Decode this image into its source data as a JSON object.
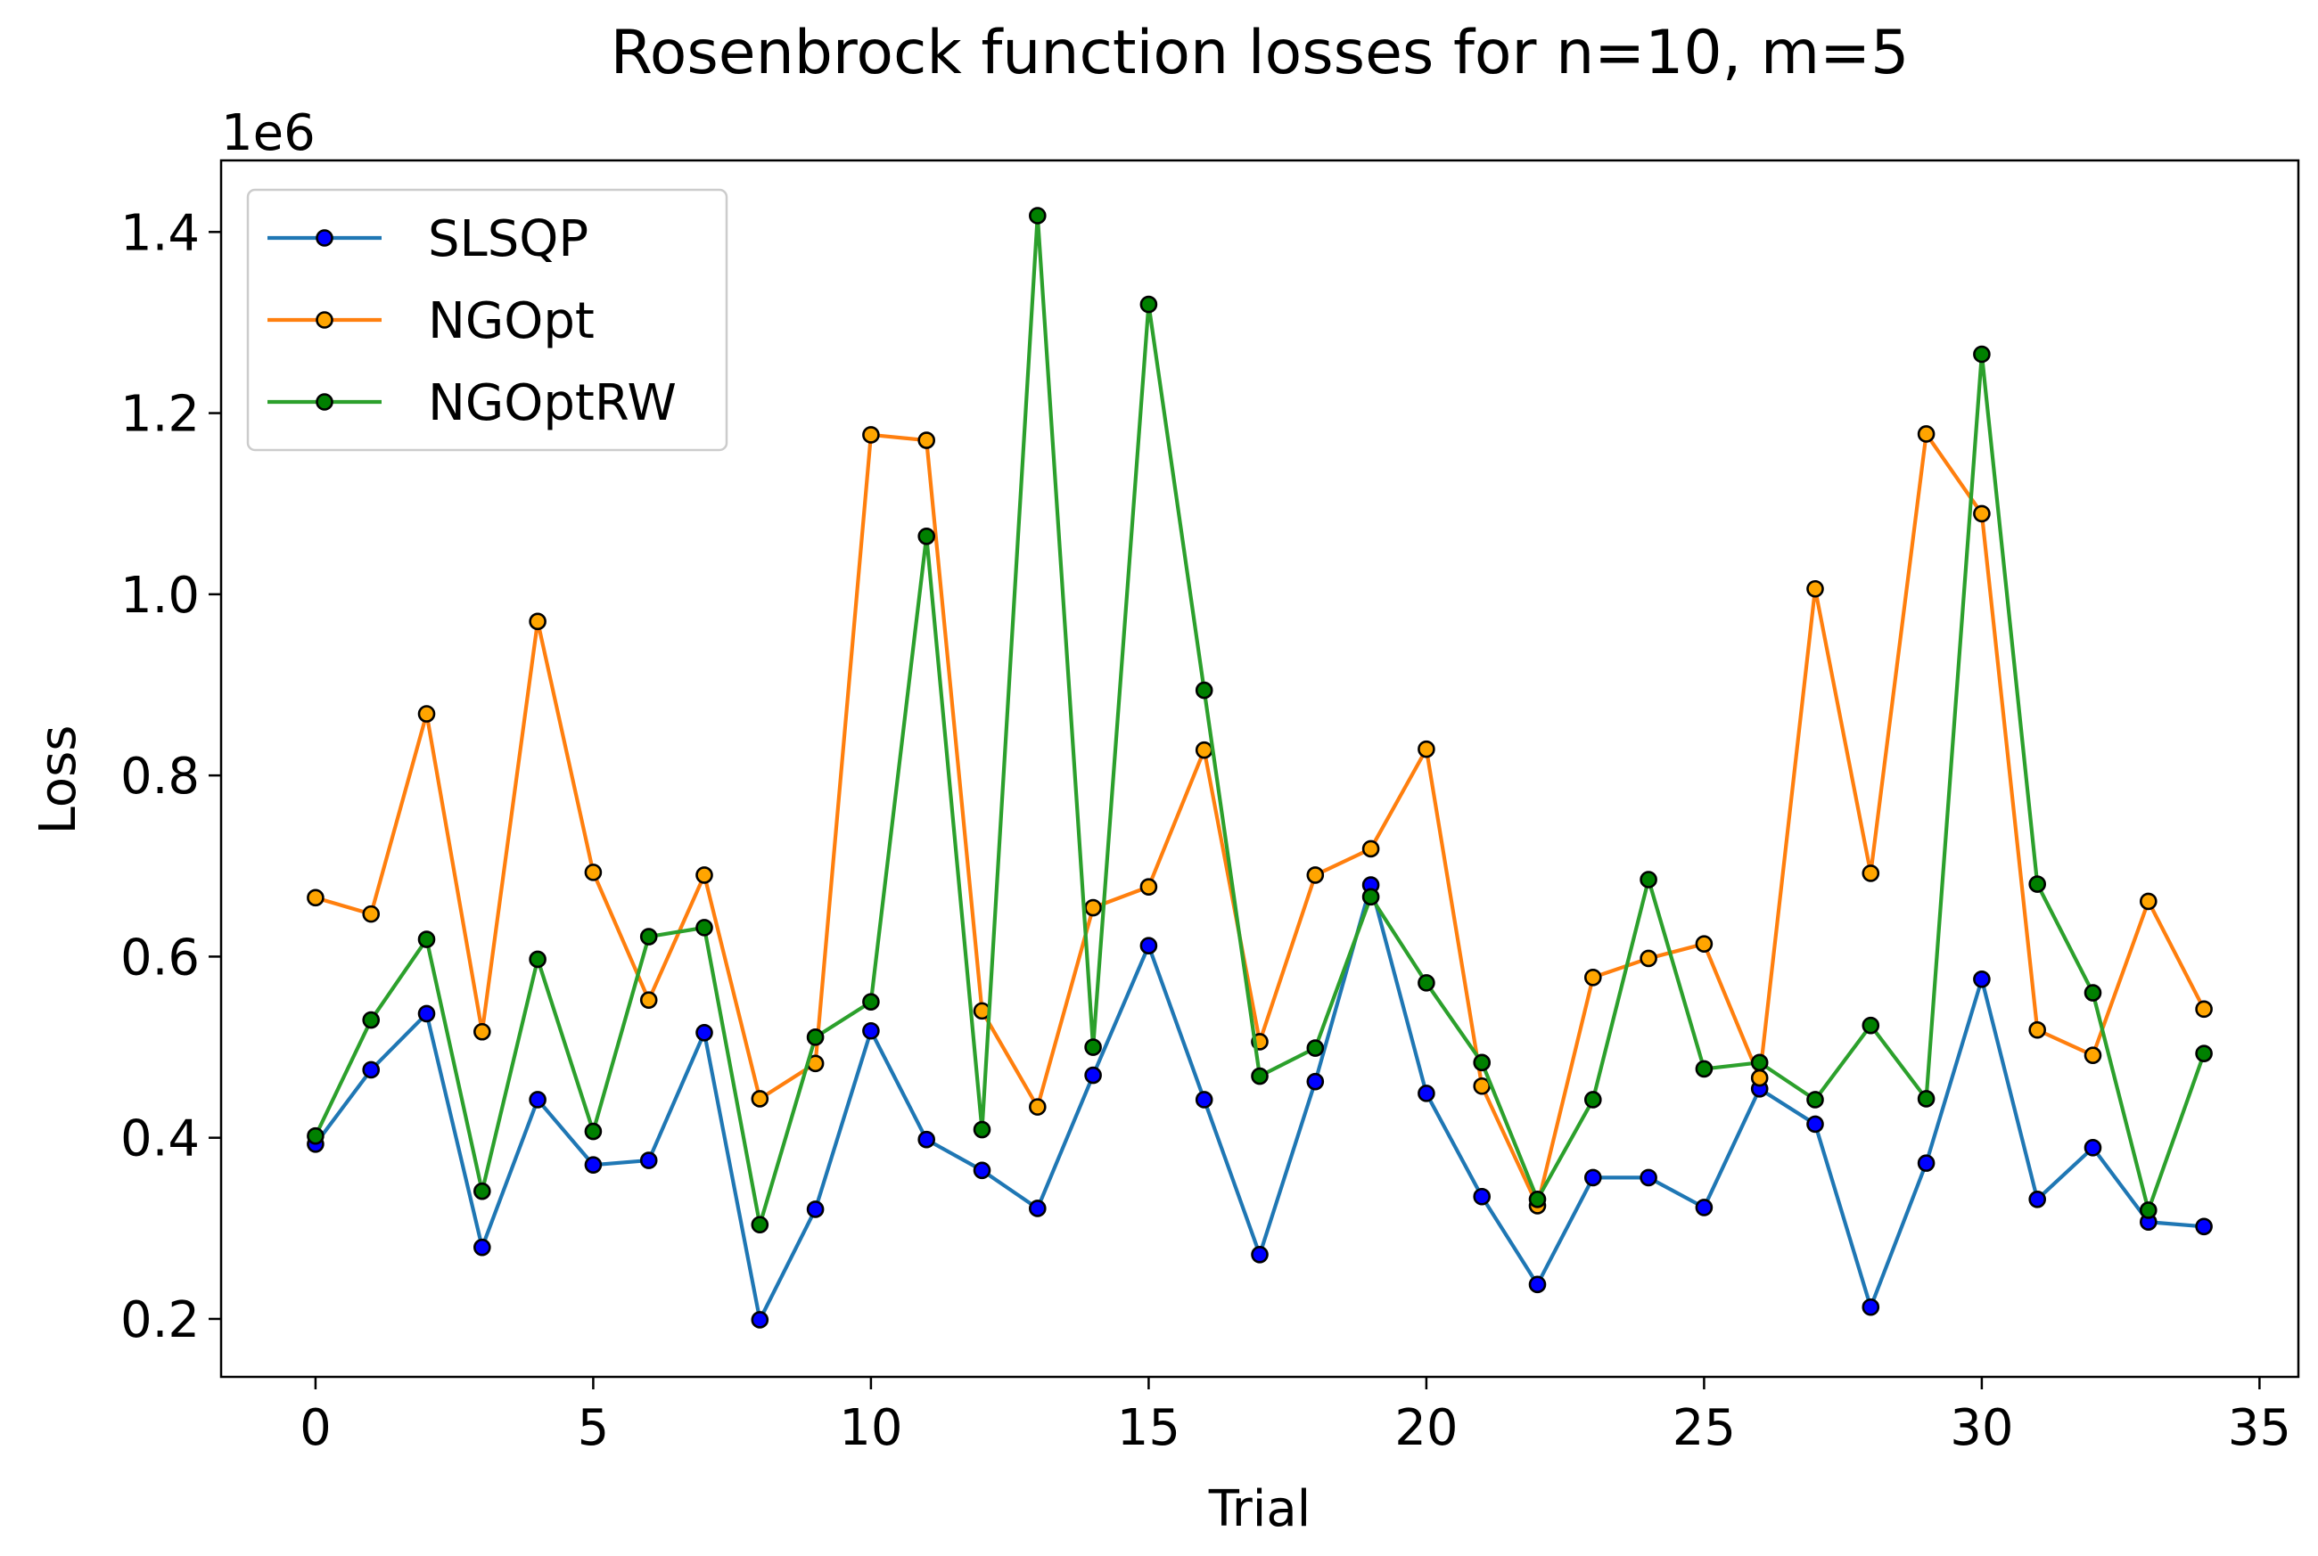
{
  "chart_data": {
    "type": "line",
    "title": "Rosenbrock function losses for n=10, m=5",
    "xlabel": "Trial",
    "ylabel": "Loss",
    "y_offset_label": "1e6",
    "xlim": [
      -1.7,
      35.7
    ],
    "ylim": [
      136000,
      1479000
    ],
    "x_ticks": [
      0,
      5,
      10,
      15,
      20,
      25,
      30,
      35
    ],
    "x_tick_labels": [
      "0",
      "5",
      "10",
      "15",
      "20",
      "25",
      "30",
      "35"
    ],
    "y_ticks": [
      200000,
      400000,
      600000,
      800000,
      1000000,
      1200000,
      1400000
    ],
    "y_tick_labels": [
      "0.2",
      "0.4",
      "0.6",
      "0.8",
      "1.0",
      "1.2",
      "1.4"
    ],
    "grid": false,
    "legend_position": "top-left",
    "x": [
      0,
      1,
      2,
      3,
      4,
      5,
      6,
      7,
      8,
      9,
      10,
      11,
      12,
      13,
      14,
      15,
      16,
      17,
      18,
      19,
      20,
      21,
      22,
      23,
      24,
      25,
      26,
      27,
      28,
      29,
      30,
      31,
      32,
      33,
      34
    ],
    "series": [
      {
        "name": "SLSQP",
        "color": "#1f77b4",
        "marker_color": "#0000ff",
        "values": [
          393000,
          475000,
          537000,
          279000,
          442000,
          370000,
          375000,
          516000,
          199000,
          321000,
          518000,
          398000,
          364000,
          322000,
          469000,
          612000,
          442000,
          271000,
          462000,
          679000,
          449000,
          335000,
          238000,
          356000,
          356000,
          323000,
          454000,
          415000,
          213000,
          372000,
          575000,
          332000,
          389000,
          307000,
          302000
        ]
      },
      {
        "name": "NGOpt",
        "color": "#ff7f0e",
        "marker_color": "#ffa500",
        "values": [
          665000,
          647000,
          868000,
          517000,
          970000,
          693000,
          552000,
          690000,
          443000,
          482000,
          1176000,
          1170000,
          540000,
          434000,
          654000,
          677000,
          828000,
          506000,
          690000,
          719000,
          829000,
          457000,
          325000,
          577000,
          598000,
          614000,
          466000,
          1006000,
          692000,
          1177000,
          1089000,
          519000,
          491000,
          661000,
          542000
        ]
      },
      {
        "name": "NGOptRW",
        "color": "#2ca02c",
        "marker_color": "#008000",
        "values": [
          402000,
          530000,
          619000,
          341000,
          597000,
          407000,
          622000,
          632000,
          304000,
          511000,
          550000,
          1064000,
          409000,
          1418000,
          500000,
          1320000,
          894000,
          468000,
          499000,
          666000,
          571000,
          483000,
          332000,
          442000,
          685000,
          476000,
          483000,
          442000,
          524000,
          443000,
          1265000,
          680000,
          560000,
          320000,
          493000
        ]
      }
    ]
  }
}
